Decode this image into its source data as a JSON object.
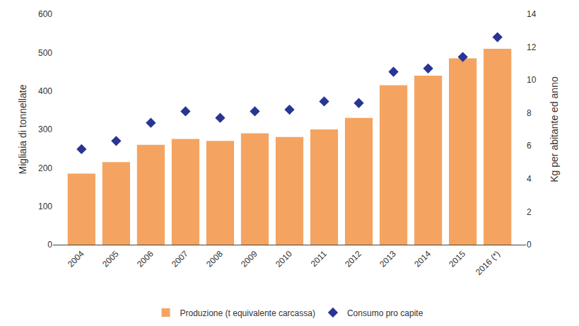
{
  "chart_data": {
    "type": "bar",
    "categories": [
      "2004",
      "2005",
      "2006",
      "2007",
      "2008",
      "2009",
      "2010",
      "2011",
      "2012",
      "2013",
      "2014",
      "2015",
      "2016 (*)"
    ],
    "series": [
      {
        "name": "Produzione (t equivalente carcassa)",
        "type": "bar",
        "color": "#F4A460",
        "values": [
          185,
          215,
          260,
          275,
          270,
          290,
          280,
          300,
          330,
          415,
          440,
          485,
          510
        ]
      },
      {
        "name": "Consumo pro capite",
        "type": "scatter",
        "marker": "diamond",
        "color": "#283593",
        "axis": "y2",
        "values": [
          5.8,
          6.3,
          7.4,
          8.1,
          7.7,
          8.1,
          8.2,
          8.7,
          8.6,
          10.5,
          10.7,
          11.4,
          12.6
        ]
      }
    ],
    "ylabel": "Migliaia di tonnellate",
    "y2label": "Kg per abitante ed anno",
    "ylim": [
      0,
      600
    ],
    "yticks": [
      0,
      100,
      200,
      300,
      400,
      500,
      600
    ],
    "y2lim": [
      0,
      14
    ],
    "y2ticks": [
      0,
      2,
      4,
      6,
      8,
      10,
      12,
      14
    ],
    "grid": false,
    "legend": "bottom"
  }
}
